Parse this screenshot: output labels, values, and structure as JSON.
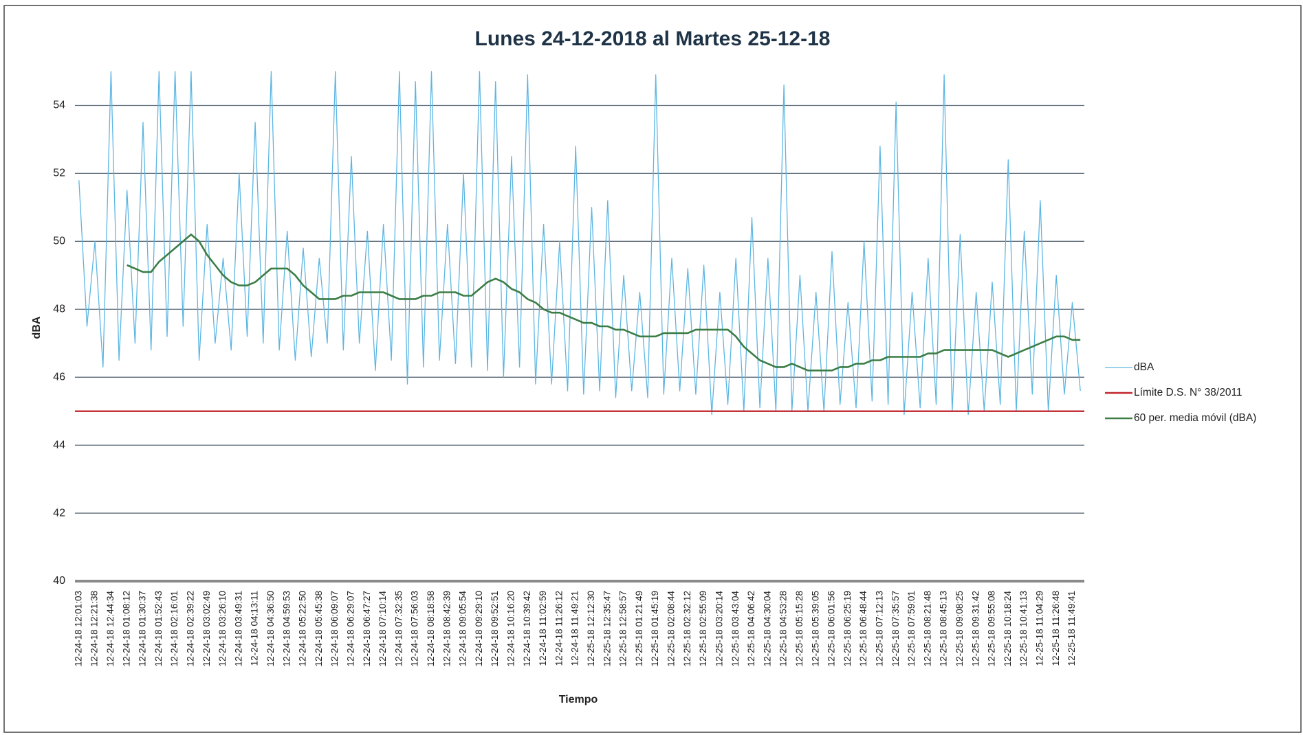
{
  "chart_data": {
    "type": "line",
    "title": "Lunes 24-12-2018 al Martes 25-12-18",
    "xlabel": "Tiempo",
    "ylabel": "dBA",
    "ylim": [
      40,
      55
    ],
    "yticks": [
      40,
      42,
      44,
      46,
      48,
      50,
      52,
      54
    ],
    "grid": true,
    "legend": "right",
    "categories": [
      "12-24-18 12:01:03",
      null,
      "12-24-18 12:21:38",
      null,
      "12-24-18 12:44:34",
      null,
      "12-24-18 01:08:12",
      null,
      "12-24-18 01:30:37",
      null,
      "12-24-18 01:52:43",
      null,
      "12-24-18 02:16:01",
      null,
      "12-24-18 02:39:22",
      null,
      "12-24-18 03:02:49",
      null,
      "12-24-18 03:26:10",
      null,
      "12-24-18 03:49:31",
      null,
      "12-24-18 04:13:11",
      null,
      "12-24-18 04:36:50",
      null,
      "12-24-18 04:59:53",
      null,
      "12-24-18 05:22:50",
      null,
      "12-24-18 05:45:38",
      null,
      "12-24-18 06:09:07",
      null,
      "12-24-18 06:29:07",
      null,
      "12-24-18 06:47:27",
      null,
      "12-24-18 07:10:14",
      null,
      "12-24-18 07:32:35",
      null,
      "12-24-18 07:56:03",
      null,
      "12-24-18 08:18:58",
      null,
      "12-24-18 08:42:39",
      null,
      "12-24-18 09:05:54",
      null,
      "12-24-18 09:29:10",
      null,
      "12-24-18 09:52:51",
      null,
      "12-24-18 10:16:20",
      null,
      "12-24-18 10:39:42",
      null,
      "12-24-18 11:02:59",
      null,
      "12-24-18 11:26:12",
      null,
      "12-24-18 11:49:21",
      null,
      "12-25-18 12:12:30",
      null,
      "12-25-18 12:35:47",
      null,
      "12-25-18 12:58:57",
      null,
      "12-25-18 01:21:49",
      null,
      "12-25-18 01:45:19",
      null,
      "12-25-18 02:08:44",
      null,
      "12-25-18 02:32:12",
      null,
      "12-25-18 02:55:09",
      null,
      "12-25-18 03:20:14",
      null,
      "12-25-18 03:43:04",
      null,
      "12-25-18 04:06:42",
      null,
      "12-25-18 04:30:04",
      null,
      "12-25-18 04:53:28",
      null,
      "12-25-18 05:15:28",
      null,
      "12-25-18 05:39:05",
      null,
      "12-25-18 06:01:56",
      null,
      "12-25-18 06:25:19",
      null,
      "12-25-18 06:48:44",
      null,
      "12-25-18 07:12:13",
      null,
      "12-25-18 07:35:57",
      null,
      "12-25-18 07:59:01",
      null,
      "12-25-18 08:21:48",
      null,
      "12-25-18 08:45:13",
      null,
      "12-25-18 09:08:25",
      null,
      "12-25-18 09:31:42",
      null,
      "12-25-18 09:55:08",
      null,
      "12-25-18 10:18:24",
      null,
      "12-25-18 10:41:13",
      null,
      "12-25-18 11:04:29",
      null,
      "12-25-18 11:26:48",
      null,
      "12-25-18 11:49:41",
      null
    ],
    "series": [
      {
        "name": "dBA",
        "color": "#5cb6e2",
        "width": 1.3,
        "values": [
          51.8,
          47.5,
          50.0,
          46.3,
          55,
          46.5,
          51.5,
          47.0,
          53.5,
          46.8,
          55,
          47.2,
          55,
          47.5,
          55,
          46.5,
          50.5,
          47.0,
          49.5,
          46.8,
          52.0,
          47.2,
          53.5,
          47.0,
          55,
          46.8,
          50.3,
          46.5,
          49.8,
          46.6,
          49.5,
          47.0,
          55,
          46.8,
          52.5,
          47.0,
          50.3,
          46.2,
          50.5,
          46.5,
          55,
          45.8,
          54.7,
          46.3,
          55,
          46.5,
          50.5,
          46.4,
          52.0,
          46.3,
          55,
          46.2,
          54.7,
          46.0,
          52.5,
          46.3,
          54.9,
          45.8,
          50.5,
          45.8,
          50.0,
          45.6,
          52.8,
          45.5,
          51.0,
          45.6,
          51.2,
          45.4,
          49.0,
          45.6,
          48.5,
          45.4,
          54.9,
          45.5,
          49.5,
          45.6,
          49.2,
          45.5,
          49.3,
          44.9,
          48.5,
          45.2,
          49.5,
          45.0,
          50.7,
          45.1,
          49.5,
          45.0,
          54.6,
          45.0,
          49.0,
          45.0,
          48.5,
          45.0,
          49.7,
          45.2,
          48.2,
          45.1,
          50.0,
          45.3,
          52.8,
          45.2,
          54.1,
          44.9,
          48.5,
          45.1,
          49.5,
          45.2,
          54.9,
          45.0,
          50.2,
          44.9,
          48.5,
          45.0,
          48.8,
          45.2,
          52.4,
          45.0,
          50.3,
          45.5,
          51.2,
          45.0,
          49.0,
          45.5,
          48.2,
          45.6
        ]
      },
      {
        "name": "60 per. media móvil (dBA)",
        "color": "#3b7d46",
        "width": 2.6,
        "values": [
          null,
          null,
          null,
          null,
          null,
          null,
          49.3,
          49.2,
          49.1,
          49.1,
          49.4,
          49.6,
          49.8,
          50.0,
          50.2,
          50.0,
          49.6,
          49.3,
          49.0,
          48.8,
          48.7,
          48.7,
          48.8,
          49.0,
          49.2,
          49.2,
          49.2,
          49.0,
          48.7,
          48.5,
          48.3,
          48.3,
          48.3,
          48.4,
          48.4,
          48.5,
          48.5,
          48.5,
          48.5,
          48.4,
          48.3,
          48.3,
          48.3,
          48.4,
          48.4,
          48.5,
          48.5,
          48.5,
          48.4,
          48.4,
          48.6,
          48.8,
          48.9,
          48.8,
          48.6,
          48.5,
          48.3,
          48.2,
          48.0,
          47.9,
          47.9,
          47.8,
          47.7,
          47.6,
          47.6,
          47.5,
          47.5,
          47.4,
          47.4,
          47.3,
          47.2,
          47.2,
          47.2,
          47.3,
          47.3,
          47.3,
          47.3,
          47.4,
          47.4,
          47.4,
          47.4,
          47.4,
          47.2,
          46.9,
          46.7,
          46.5,
          46.4,
          46.3,
          46.3,
          46.4,
          46.3,
          46.2,
          46.2,
          46.2,
          46.2,
          46.3,
          46.3,
          46.4,
          46.4,
          46.5,
          46.5,
          46.6,
          46.6,
          46.6,
          46.6,
          46.6,
          46.7,
          46.7,
          46.8,
          46.8,
          46.8,
          46.8,
          46.8,
          46.8,
          46.8,
          46.7,
          46.6,
          46.7,
          46.8,
          46.9,
          47.0,
          47.1,
          47.2,
          47.2,
          47.1,
          47.1
        ]
      }
    ],
    "reference_line": {
      "name": "Límite D.S. N° 38/2011",
      "color": "#c0262d",
      "value": 45
    }
  }
}
